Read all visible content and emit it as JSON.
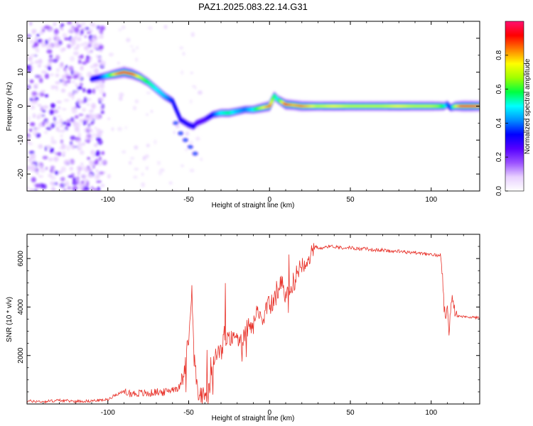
{
  "title": "PAZ1.2025.083.22.14.G31",
  "chart_data": [
    {
      "type": "heatmap",
      "xlabel": "Height of straight line (km)",
      "ylabel": "Frequency (Hz)",
      "xlim": [
        -150,
        130
      ],
      "ylim": [
        -25,
        25
      ],
      "x_ticks": [
        -100,
        -50,
        0,
        50,
        100
      ],
      "x_tick_labels": [
        "-100",
        "-50",
        "0",
        "50",
        "100"
      ],
      "y_ticks": [
        -20,
        -10,
        0,
        10,
        20
      ],
      "y_tick_labels": [
        "-20",
        "-10",
        "0",
        "10",
        "20"
      ],
      "colorbar": {
        "label": "Normalized spectral amplitude",
        "range": [
          0,
          1
        ],
        "ticks": [
          0,
          0.2,
          0.4,
          0.6,
          0.8
        ],
        "tick_labels": [
          "0.0",
          "0.2",
          "0.4",
          "0.6",
          "0.8"
        ],
        "colors": [
          "#ffffff",
          "#e8d0ff",
          "#9a50ff",
          "#5500ff",
          "#0000ff",
          "#0090ff",
          "#00ffff",
          "#00ff40",
          "#a0ff00",
          "#ffff00",
          "#ff8000",
          "#ff0000",
          "#ff1070"
        ]
      },
      "ridge": {
        "x": [
          -110,
          -105,
          -100,
          -95,
          -90,
          -85,
          -80,
          -75,
          -70,
          -65,
          -60,
          -55,
          -50,
          -47,
          -45,
          -40,
          -35,
          -30,
          -25,
          -20,
          -15,
          -10,
          -5,
          0,
          3,
          5,
          10,
          15,
          20,
          30,
          40,
          50,
          60,
          70,
          80,
          90,
          100,
          105,
          108,
          110,
          112,
          115,
          120,
          125,
          130
        ],
        "freq": [
          8.0,
          8.5,
          9.0,
          9.5,
          10.0,
          9.5,
          8.5,
          7.0,
          5.0,
          3.0,
          1.5,
          -4.0,
          -5.5,
          -6.0,
          -5.0,
          -4.0,
          -2.5,
          -2.0,
          -2.0,
          -1.5,
          -1.0,
          -1.0,
          -0.5,
          0.0,
          3.0,
          2.0,
          0.5,
          0.3,
          0.0,
          0.0,
          0.0,
          0.0,
          0.0,
          0.0,
          0.0,
          0.0,
          0.0,
          0.0,
          0.0,
          0.5,
          -0.5,
          0.0,
          0.0,
          0.0,
          0.0
        ],
        "amplitude": [
          0.3,
          0.35,
          0.5,
          0.8,
          0.95,
          0.9,
          0.7,
          0.55,
          0.5,
          0.45,
          0.35,
          0.3,
          0.3,
          0.3,
          0.25,
          0.25,
          0.35,
          0.5,
          0.55,
          0.45,
          0.4,
          0.5,
          0.7,
          0.85,
          0.55,
          0.5,
          0.9,
          0.8,
          0.85,
          0.7,
          0.75,
          0.7,
          0.7,
          0.7,
          0.75,
          0.7,
          0.7,
          0.65,
          0.55,
          0.4,
          0.35,
          0.7,
          0.95,
          0.9,
          0.85
        ]
      }
    },
    {
      "type": "line",
      "xlabel": "Height of straight line (km)",
      "ylabel": "SNR (10 * v/v)",
      "xlim": [
        -150,
        130
      ],
      "ylim": [
        0,
        7000
      ],
      "x_ticks": [
        -100,
        -50,
        0,
        50,
        100
      ],
      "x_tick_labels": [
        "-100",
        "-50",
        "0",
        "50",
        "100"
      ],
      "y_ticks": [
        2000,
        4000,
        6000
      ],
      "y_tick_labels": [
        "2000",
        "4000",
        "6000"
      ],
      "series": [
        {
          "color": "#e8332b",
          "x": [
            -150,
            -140,
            -130,
            -120,
            -110,
            -100,
            -95,
            -90,
            -85,
            -80,
            -75,
            -70,
            -65,
            -60,
            -55,
            -52,
            -50,
            -48,
            -46,
            -45,
            -44,
            -42,
            -40,
            -38,
            -35,
            -32,
            -30,
            -28,
            -25,
            -22,
            -20,
            -18,
            -15,
            -12,
            -10,
            -8,
            -5,
            -2,
            0,
            2,
            4,
            6,
            8,
            10,
            12,
            14,
            16,
            18,
            20,
            22,
            25,
            28,
            30,
            35,
            40,
            45,
            50,
            55,
            60,
            65,
            70,
            75,
            80,
            85,
            90,
            95,
            100,
            103,
            105,
            106,
            107,
            108,
            109,
            110,
            111,
            112,
            113,
            115,
            120,
            125,
            130
          ],
          "y": [
            120,
            100,
            150,
            110,
            130,
            180,
            400,
            500,
            420,
            450,
            420,
            500,
            480,
            620,
            700,
            1600,
            2800,
            4500,
            1500,
            700,
            250,
            300,
            350,
            300,
            1500,
            2300,
            2000,
            2900,
            2600,
            2700,
            3000,
            2400,
            3000,
            3300,
            3200,
            3800,
            3500,
            3900,
            4100,
            4200,
            4400,
            4800,
            4900,
            4500,
            4600,
            4900,
            5200,
            5600,
            5800,
            5900,
            6100,
            6300,
            6400,
            6500,
            6500,
            6450,
            6450,
            6400,
            6400,
            6350,
            6350,
            6300,
            6300,
            6250,
            6250,
            6200,
            6150,
            6150,
            6100,
            6200,
            5200,
            4000,
            3700,
            4100,
            3000,
            3800,
            4500,
            3650,
            3600,
            3580,
            3550
          ]
        }
      ]
    }
  ]
}
